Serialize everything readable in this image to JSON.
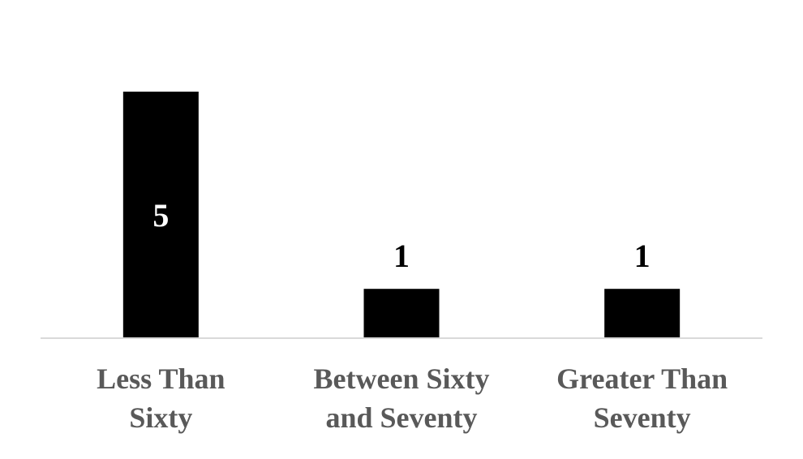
{
  "chart_data": {
    "type": "bar",
    "title": "",
    "xlabel": "",
    "ylabel": "",
    "categories": [
      "Less Than Sixty",
      "Between Sixty and Seventy",
      "Greater Than Seventy"
    ],
    "category_label_lines": [
      [
        "Less Than",
        "Sixty"
      ],
      [
        "Between Sixty",
        "and Seventy"
      ],
      [
        "Greater Than",
        "Seventy"
      ]
    ],
    "values": [
      5,
      1,
      1
    ],
    "data_labels": [
      "5",
      "1",
      "1"
    ],
    "ylim": [
      0,
      5
    ],
    "grid": false,
    "legend": "none",
    "bar_color": "#000000",
    "axis_color": "#d9d9d9",
    "category_label_color": "#595959"
  }
}
